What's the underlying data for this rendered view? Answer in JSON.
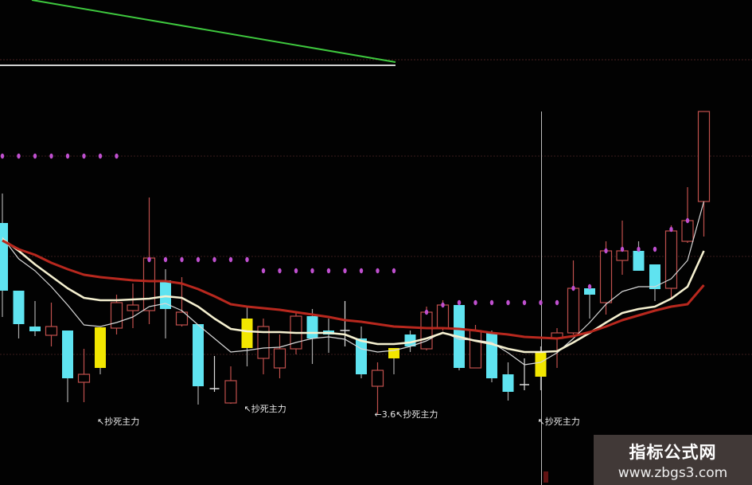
{
  "chart_data": {
    "type": "candlestick",
    "title": "",
    "xlabel": "",
    "ylabel": "",
    "grid": "faint dotted horizontal lines",
    "colors": {
      "up": "#c0504d",
      "down": "#5fe3f0",
      "signal_bar": "#f2e600",
      "ma_short": "#d8d8d8",
      "ma_mid": "#f5f0d0",
      "ma_long": "#b8281e",
      "signal_dot": "#c050d0",
      "indicator_line": "#3ec83e"
    },
    "candles": [
      {
        "type": "down",
        "o": 32.0,
        "c": 23.5,
        "h": 35.7,
        "l": 20.2
      },
      {
        "type": "down",
        "o": 23.5,
        "c": 19.3,
        "h": 23.5,
        "l": 17.5
      },
      {
        "type": "down",
        "o": 19.0,
        "c": 18.4,
        "h": 22.2,
        "l": 17.8
      },
      {
        "type": "up",
        "o": 17.9,
        "c": 19.0,
        "h": 22.0,
        "l": 16.5
      },
      {
        "type": "down",
        "o": 18.5,
        "c": 12.5,
        "h": 18.5,
        "l": 9.5
      },
      {
        "type": "up",
        "o": 12.0,
        "c": 13.0,
        "h": 16.2,
        "l": 9.5
      },
      {
        "type": "signal",
        "o": 18.9,
        "c": 13.8,
        "h": 18.9,
        "l": 13.0
      },
      {
        "type": "up",
        "o": 18.8,
        "c": 22.0,
        "h": 23.0,
        "l": 18.0
      },
      {
        "type": "up",
        "o": 21.0,
        "c": 21.7,
        "h": 24.4,
        "l": 18.8
      },
      {
        "type": "up",
        "o": 21.0,
        "c": 27.6,
        "h": 35.2,
        "l": 19.3
      },
      {
        "type": "down",
        "o": 24.8,
        "c": 21.2,
        "h": 26.2,
        "l": 17.5
      },
      {
        "type": "up",
        "o": 19.2,
        "c": 20.8,
        "h": 25.2,
        "l": 19.0
      },
      {
        "type": "down",
        "o": 19.3,
        "c": 11.5,
        "h": 19.3,
        "l": 9.2
      },
      {
        "type": "cross",
        "o": 11.2,
        "c": 11.2,
        "h": 15.3,
        "l": 10.8
      },
      {
        "type": "up",
        "o": 9.4,
        "c": 12.2,
        "h": 14.0,
        "l": 9.3
      },
      {
        "type": "signal",
        "o": 20.0,
        "c": 16.3,
        "h": 21.5,
        "l": 14.0
      },
      {
        "type": "up",
        "o": 15.0,
        "c": 19.0,
        "h": 20.0,
        "l": 13.0
      },
      {
        "type": "up",
        "o": 13.8,
        "c": 16.2,
        "h": 18.0,
        "l": 12.5
      },
      {
        "type": "up",
        "o": 16.2,
        "c": 20.3,
        "h": 20.8,
        "l": 15.5
      },
      {
        "type": "down",
        "o": 20.3,
        "c": 17.5,
        "h": 21.2,
        "l": 14.3
      },
      {
        "type": "down",
        "o": 18.5,
        "c": 18.0,
        "h": 20.0,
        "l": 15.7
      },
      {
        "type": "cross",
        "o": 18.5,
        "c": 18.5,
        "h": 22.2,
        "l": 16.5
      },
      {
        "type": "down",
        "o": 17.5,
        "c": 13.0,
        "h": 19.0,
        "l": 12.5
      },
      {
        "type": "up",
        "o": 11.5,
        "c": 13.5,
        "h": 14.5,
        "l": 8.0
      },
      {
        "type": "signal",
        "o": 16.3,
        "c": 15.0,
        "h": 16.3,
        "l": 13.0
      },
      {
        "type": "down",
        "o": 18.0,
        "c": 16.5,
        "h": 18.5,
        "l": 15.8
      },
      {
        "type": "up",
        "o": 16.2,
        "c": 20.8,
        "h": 21.5,
        "l": 16.0
      },
      {
        "type": "up",
        "o": 18.8,
        "c": 21.7,
        "h": 22.3,
        "l": 18.5
      },
      {
        "type": "down",
        "o": 21.7,
        "c": 13.8,
        "h": 21.7,
        "l": 13.5
      },
      {
        "type": "up",
        "o": 13.8,
        "c": 18.5,
        "h": 19.2,
        "l": 13.8
      },
      {
        "type": "down",
        "o": 18.2,
        "c": 12.5,
        "h": 18.5,
        "l": 12.0
      },
      {
        "type": "down",
        "o": 13.0,
        "c": 10.8,
        "h": 14.5,
        "l": 9.7
      },
      {
        "type": "cross",
        "o": 11.7,
        "c": 11.7,
        "h": 15.0,
        "l": 11.0
      },
      {
        "type": "signal",
        "o": 15.7,
        "c": 12.7,
        "h": 16.5,
        "l": 11.0
      },
      {
        "type": "up",
        "o": 17.5,
        "c": 18.2,
        "h": 18.8,
        "l": 13.8
      },
      {
        "type": "up",
        "o": 18.2,
        "c": 23.8,
        "h": 27.3,
        "l": 18.0
      },
      {
        "type": "down",
        "o": 23.8,
        "c": 23.0,
        "h": 24.2,
        "l": 20.0
      },
      {
        "type": "up",
        "o": 22.0,
        "c": 28.5,
        "h": 29.7,
        "l": 20.5
      },
      {
        "type": "up",
        "o": 27.3,
        "c": 28.5,
        "h": 32.3,
        "l": 25.5
      },
      {
        "type": "down",
        "o": 28.5,
        "c": 26.0,
        "h": 29.7,
        "l": 26.0
      },
      {
        "type": "down",
        "o": 26.8,
        "c": 23.7,
        "h": 26.8,
        "l": 22.2
      },
      {
        "type": "up",
        "o": 23.8,
        "c": 31.0,
        "h": 31.7,
        "l": 22.5
      },
      {
        "type": "up",
        "o": 29.7,
        "c": 32.3,
        "h": 36.5,
        "l": 29.5
      },
      {
        "type": "up",
        "o": 34.7,
        "c": 46.0,
        "h": 46.0,
        "l": 30.3
      }
    ],
    "moving_averages": [
      {
        "style": "short",
        "values": [
          30.2,
          27.5,
          26.0,
          24.0,
          21.7,
          19.2,
          19.0,
          19.5,
          20.2,
          21.5,
          21.9,
          21.0,
          19.2,
          17.5,
          15.8,
          16.0,
          16.3,
          16.4,
          17.0,
          17.5,
          17.7,
          17.4,
          16.2,
          15.8,
          16.0,
          16.5,
          17.2,
          18.3,
          17.4,
          17.3,
          17.0,
          15.7,
          14.2,
          14.5,
          15.7,
          17.5,
          19.5,
          21.8,
          23.4,
          24.0,
          24.0,
          25.0,
          27.3,
          34.7
        ]
      },
      {
        "style": "mid",
        "values": [
          30.0,
          28.5,
          26.8,
          25.3,
          23.8,
          22.6,
          22.3,
          22.3,
          22.4,
          22.5,
          22.8,
          22.6,
          21.5,
          20.0,
          18.7,
          18.4,
          18.3,
          18.3,
          18.2,
          18.2,
          18.2,
          18.0,
          17.2,
          16.8,
          16.8,
          17.0,
          17.5,
          18.2,
          17.7,
          17.2,
          16.8,
          16.2,
          15.8,
          15.8,
          15.9,
          17.0,
          18.2,
          19.5,
          20.7,
          21.2,
          21.5,
          22.5,
          24.0,
          28.5
        ]
      },
      {
        "style": "long",
        "values": [
          29.8,
          28.7,
          28.0,
          27.0,
          26.2,
          25.5,
          25.2,
          25.0,
          24.8,
          24.7,
          24.7,
          24.4,
          23.7,
          22.8,
          21.8,
          21.5,
          21.3,
          21.1,
          20.8,
          20.5,
          20.2,
          19.8,
          19.6,
          19.3,
          19.0,
          18.9,
          18.8,
          18.8,
          18.7,
          18.5,
          18.2,
          18.0,
          17.7,
          17.6,
          17.5,
          17.8,
          18.3,
          19.0,
          19.8,
          20.4,
          21.0,
          21.5,
          21.8,
          24.2
        ]
      }
    ],
    "signal_dots": [
      [
        0,
        40.4
      ],
      [
        1,
        40.4
      ],
      [
        2,
        40.4
      ],
      [
        3,
        40.4
      ],
      [
        4,
        40.4
      ],
      [
        5,
        40.4
      ],
      [
        6,
        40.4
      ],
      [
        7,
        40.4
      ],
      [
        9,
        27.4
      ],
      [
        10,
        27.4
      ],
      [
        11,
        27.4
      ],
      [
        12,
        27.4
      ],
      [
        13,
        27.4
      ],
      [
        14,
        27.4
      ],
      [
        15,
        27.4
      ],
      [
        16,
        26.0
      ],
      [
        17,
        26.0
      ],
      [
        18,
        26.0
      ],
      [
        19,
        26.0
      ],
      [
        20,
        26.0
      ],
      [
        21,
        26.0
      ],
      [
        22,
        26.0
      ],
      [
        23,
        26.0
      ],
      [
        24,
        26.0
      ],
      [
        26,
        20.8
      ],
      [
        27,
        21.7
      ],
      [
        28,
        22.0
      ],
      [
        29,
        22.0
      ],
      [
        30,
        22.0
      ],
      [
        31,
        22.0
      ],
      [
        32,
        22.0
      ],
      [
        33,
        22.0
      ],
      [
        34,
        22.0
      ],
      [
        35,
        23.8
      ],
      [
        36,
        24.0
      ],
      [
        37,
        28.5
      ],
      [
        38,
        28.7
      ],
      [
        39,
        28.7
      ],
      [
        40,
        28.7
      ],
      [
        41,
        31.2
      ],
      [
        42,
        32.3
      ]
    ],
    "annotations": [
      {
        "index": 6,
        "price": 6.7,
        "text": "↖抄死主力"
      },
      {
        "index": 15,
        "price": 8.3,
        "text": "↖抄死主力"
      },
      {
        "index": 23,
        "price": 7.6,
        "text": "←3.6↖抄死主力"
      },
      {
        "index": 33,
        "price": 6.7,
        "text": "↖抄死主力"
      }
    ],
    "cursor_index": 33,
    "reference_levels": [
      40.4,
      27.8,
      15.5
    ]
  },
  "watermark": {
    "title": "指标公式网",
    "url": "www.zbgs3.com"
  }
}
